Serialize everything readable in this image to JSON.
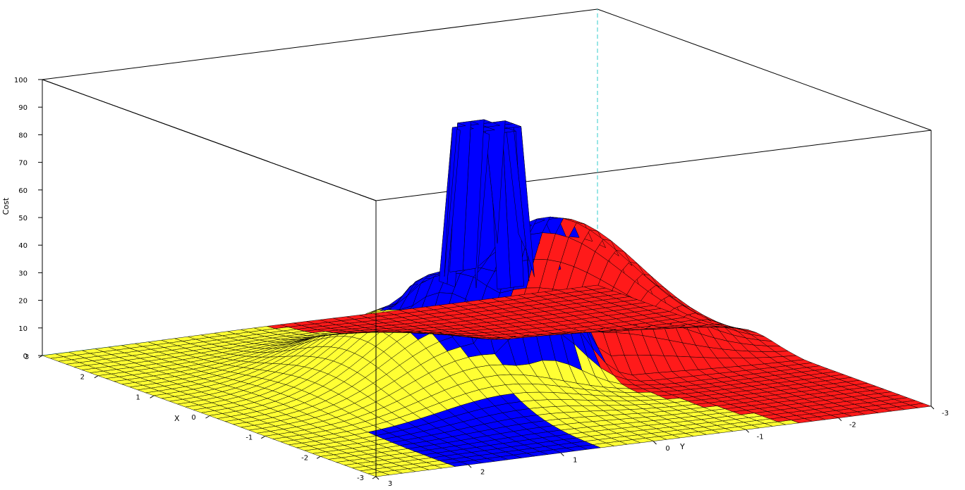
{
  "chart_data": {
    "type": "surface3d",
    "title": "",
    "zlabel": "Cost",
    "xlabel": "X",
    "ylabel": "Y",
    "zlim": [
      0,
      100
    ],
    "xlim": [
      -3,
      3
    ],
    "ylim": [
      -3,
      3
    ],
    "z_ticks": [
      "0",
      "10",
      "20",
      "30",
      "40",
      "50",
      "60",
      "70",
      "80",
      "90",
      "100"
    ],
    "x_ticks": [
      "3",
      "2",
      "1",
      "0",
      "-1",
      "-2",
      "-3"
    ],
    "y_ticks": [
      "3",
      "2",
      "1",
      "0",
      "-1",
      "-2",
      "-3"
    ],
    "grid": false,
    "box": true,
    "regions": [
      {
        "name": "blue",
        "color": "#0000ff",
        "mesh": "#000000"
      },
      {
        "name": "yellow",
        "color": "#ffff33",
        "mesh": "#000000"
      },
      {
        "name": "red",
        "color": "#ff1a1a",
        "mesh": "#000000"
      }
    ],
    "features": {
      "peak_height": 92,
      "peak_radius": 0.38,
      "plateau_height": 37,
      "mound_height": 30,
      "floor_height": 0
    }
  }
}
